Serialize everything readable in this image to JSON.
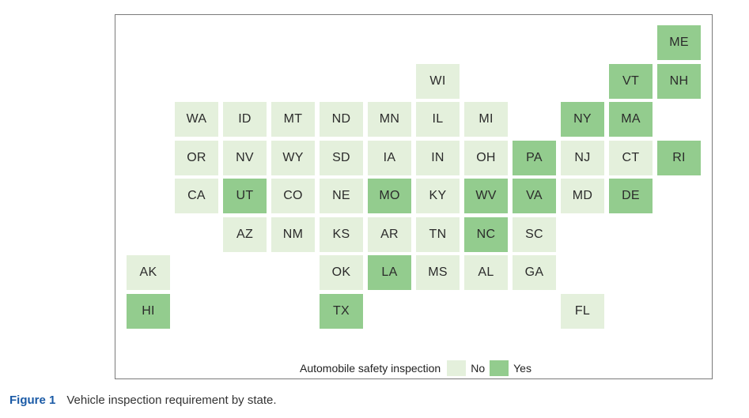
{
  "chart_data": {
    "type": "table",
    "legend": {
      "title": "Automobile safety inspection",
      "placement": "bottom",
      "entries": [
        {
          "label": "No",
          "color": "#e4f0dc"
        },
        {
          "label": "Yes",
          "color": "#93cc8e"
        }
      ]
    },
    "tiles": [
      {
        "state": "ME",
        "col": 11,
        "row": 0,
        "inspection": "Yes"
      },
      {
        "state": "WI",
        "col": 6,
        "row": 1,
        "inspection": "No"
      },
      {
        "state": "VT",
        "col": 10,
        "row": 1,
        "inspection": "Yes"
      },
      {
        "state": "NH",
        "col": 11,
        "row": 1,
        "inspection": "Yes"
      },
      {
        "state": "WA",
        "col": 1,
        "row": 2,
        "inspection": "No"
      },
      {
        "state": "ID",
        "col": 2,
        "row": 2,
        "inspection": "No"
      },
      {
        "state": "MT",
        "col": 3,
        "row": 2,
        "inspection": "No"
      },
      {
        "state": "ND",
        "col": 4,
        "row": 2,
        "inspection": "No"
      },
      {
        "state": "MN",
        "col": 5,
        "row": 2,
        "inspection": "No"
      },
      {
        "state": "IL",
        "col": 6,
        "row": 2,
        "inspection": "No"
      },
      {
        "state": "MI",
        "col": 7,
        "row": 2,
        "inspection": "No"
      },
      {
        "state": "NY",
        "col": 9,
        "row": 2,
        "inspection": "Yes"
      },
      {
        "state": "MA",
        "col": 10,
        "row": 2,
        "inspection": "Yes"
      },
      {
        "state": "OR",
        "col": 1,
        "row": 3,
        "inspection": "No"
      },
      {
        "state": "NV",
        "col": 2,
        "row": 3,
        "inspection": "No"
      },
      {
        "state": "WY",
        "col": 3,
        "row": 3,
        "inspection": "No"
      },
      {
        "state": "SD",
        "col": 4,
        "row": 3,
        "inspection": "No"
      },
      {
        "state": "IA",
        "col": 5,
        "row": 3,
        "inspection": "No"
      },
      {
        "state": "IN",
        "col": 6,
        "row": 3,
        "inspection": "No"
      },
      {
        "state": "OH",
        "col": 7,
        "row": 3,
        "inspection": "No"
      },
      {
        "state": "PA",
        "col": 8,
        "row": 3,
        "inspection": "Yes"
      },
      {
        "state": "NJ",
        "col": 9,
        "row": 3,
        "inspection": "No"
      },
      {
        "state": "CT",
        "col": 10,
        "row": 3,
        "inspection": "No"
      },
      {
        "state": "RI",
        "col": 11,
        "row": 3,
        "inspection": "Yes"
      },
      {
        "state": "CA",
        "col": 1,
        "row": 4,
        "inspection": "No"
      },
      {
        "state": "UT",
        "col": 2,
        "row": 4,
        "inspection": "Yes"
      },
      {
        "state": "CO",
        "col": 3,
        "row": 4,
        "inspection": "No"
      },
      {
        "state": "NE",
        "col": 4,
        "row": 4,
        "inspection": "No"
      },
      {
        "state": "MO",
        "col": 5,
        "row": 4,
        "inspection": "Yes"
      },
      {
        "state": "KY",
        "col": 6,
        "row": 4,
        "inspection": "No"
      },
      {
        "state": "WV",
        "col": 7,
        "row": 4,
        "inspection": "Yes"
      },
      {
        "state": "VA",
        "col": 8,
        "row": 4,
        "inspection": "Yes"
      },
      {
        "state": "MD",
        "col": 9,
        "row": 4,
        "inspection": "No"
      },
      {
        "state": "DE",
        "col": 10,
        "row": 4,
        "inspection": "Yes"
      },
      {
        "state": "AZ",
        "col": 2,
        "row": 5,
        "inspection": "No"
      },
      {
        "state": "NM",
        "col": 3,
        "row": 5,
        "inspection": "No"
      },
      {
        "state": "KS",
        "col": 4,
        "row": 5,
        "inspection": "No"
      },
      {
        "state": "AR",
        "col": 5,
        "row": 5,
        "inspection": "No"
      },
      {
        "state": "TN",
        "col": 6,
        "row": 5,
        "inspection": "No"
      },
      {
        "state": "NC",
        "col": 7,
        "row": 5,
        "inspection": "Yes"
      },
      {
        "state": "SC",
        "col": 8,
        "row": 5,
        "inspection": "No"
      },
      {
        "state": "AK",
        "col": 0,
        "row": 6,
        "inspection": "No"
      },
      {
        "state": "OK",
        "col": 4,
        "row": 6,
        "inspection": "No"
      },
      {
        "state": "LA",
        "col": 5,
        "row": 6,
        "inspection": "Yes"
      },
      {
        "state": "MS",
        "col": 6,
        "row": 6,
        "inspection": "No"
      },
      {
        "state": "AL",
        "col": 7,
        "row": 6,
        "inspection": "No"
      },
      {
        "state": "GA",
        "col": 8,
        "row": 6,
        "inspection": "No"
      },
      {
        "state": "HI",
        "col": 0,
        "row": 7,
        "inspection": "Yes"
      },
      {
        "state": "TX",
        "col": 4,
        "row": 7,
        "inspection": "Yes"
      },
      {
        "state": "FL",
        "col": 9,
        "row": 7,
        "inspection": "No"
      }
    ]
  },
  "caption": {
    "label": "Figure 1",
    "text": "Vehicle inspection requirement by state."
  }
}
